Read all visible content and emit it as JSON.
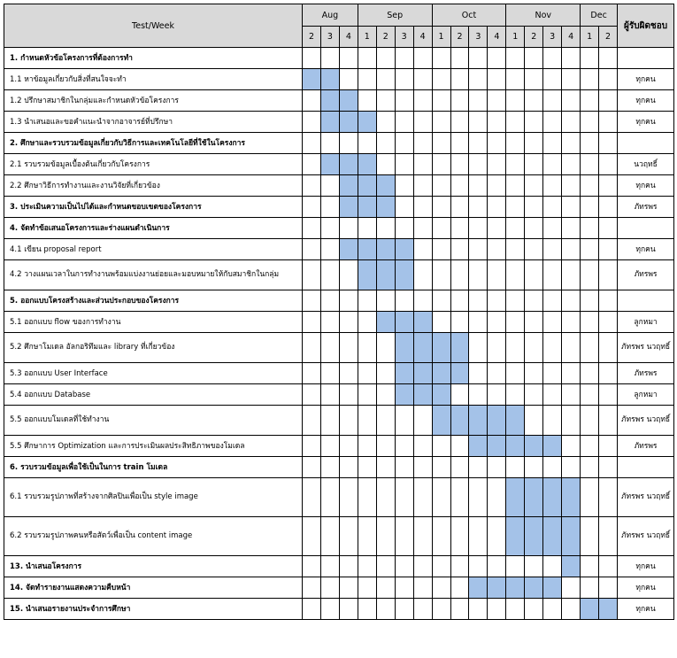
{
  "header": {
    "task_col": "Test/Week",
    "resp_col": "ผู้รับผิดชอบ",
    "months": [
      {
        "label": "Aug",
        "weeks": [
          "2",
          "3",
          "4"
        ]
      },
      {
        "label": "Sep",
        "weeks": [
          "1",
          "2",
          "3",
          "4"
        ]
      },
      {
        "label": "Oct",
        "weeks": [
          "1",
          "2",
          "3",
          "4"
        ]
      },
      {
        "label": "Nov",
        "weeks": [
          "1",
          "2",
          "3",
          "4"
        ]
      },
      {
        "label": "Dec",
        "weeks": [
          "1",
          "2"
        ]
      }
    ]
  },
  "rows": [
    {
      "task": "1. กำหนดหัวข้อโครงการที่ต้องการทำ",
      "head": true,
      "resp": "",
      "filled": []
    },
    {
      "task": "1.1 หาข้อมูลเกี่ยวกับสิ่งที่สนใจจะทำ",
      "resp": "ทุกคน",
      "filled": [
        0,
        1
      ]
    },
    {
      "task": "1.2 ปรึกษาสมาชิกในกลุ่มและกำหนดหัวข้อโครงการ",
      "resp": "ทุกคน",
      "filled": [
        1,
        2
      ]
    },
    {
      "task": "1.3 นำเสนอและขอคำแนะนำจากอาจารย์ที่ปรึกษา",
      "resp": "ทุกคน",
      "filled": [
        1,
        2,
        3
      ]
    },
    {
      "task": "2. ศึกษาและรวบรวมข้อมูลเกี่ยวกับวิธีการและเทคโนโลยีที่ใช้ในโครงการ",
      "head": true,
      "resp": "",
      "filled": []
    },
    {
      "task": "2.1 รวบรวมข้อมูลเบื้องต้นเกี่ยวกับโครงการ",
      "resp": "นวฤทธิ์",
      "filled": [
        1,
        2,
        3
      ]
    },
    {
      "task": "2.2 ศึกษาวิธีการทำงานและงานวิจัยที่เกี่ยวข้อง",
      "resp": "ทุกคน",
      "filled": [
        2,
        3,
        4
      ]
    },
    {
      "task": "3. ประเมินความเป็นไปได้และกำหนดขอบเขตของโครงการ",
      "head": true,
      "resp": "ภัทรพร",
      "filled": [
        2,
        3,
        4
      ]
    },
    {
      "task": "4. จัดทำข้อเสนอโครงการและร่างแผนดำเนินการ",
      "head": true,
      "resp": "",
      "filled": []
    },
    {
      "task": "4.1 เขียน proposal report",
      "resp": "ทุกคน",
      "filled": [
        2,
        3,
        4,
        5
      ]
    },
    {
      "task": "4.2 วางแผนเวลาในการทำงานพร้อมแบ่งงานย่อยและมอบหมายให้กับสมาชิกในกลุ่ม",
      "resp": "ภัทรพร",
      "filled": [
        3,
        4,
        5
      ],
      "tall": true
    },
    {
      "task": "5. ออกแบบโครงสร้างและส่วนประกอบของโครงการ",
      "head": true,
      "resp": "",
      "filled": []
    },
    {
      "task": "5.1 ออกแบบ flow ของการทำงาน",
      "resp": "ลูกหมา",
      "filled": [
        4,
        5,
        6
      ]
    },
    {
      "task": "5.2 ศึกษาโมเดล อัลกอริทึมและ library ที่เกี่ยวข้อง",
      "resp": "ภัทรพร นวฤทธิ์",
      "filled": [
        5,
        6,
        7,
        8
      ],
      "tall": true
    },
    {
      "task": "5.3 ออกแบบ User Interface",
      "resp": "ภัทรพร",
      "filled": [
        5,
        6,
        7,
        8
      ]
    },
    {
      "task": "5.4 ออกแบบ Database",
      "resp": "ลูกหมา",
      "filled": [
        5,
        6,
        7
      ]
    },
    {
      "task": "5.5 ออกแบบโมเดลที่ใช้ทำงาน",
      "resp": "ภัทรพร นวฤทธิ์",
      "filled": [
        7,
        8,
        9,
        10,
        11
      ],
      "tall": true
    },
    {
      "task": "5.5 ศึกษาการ Optimization และการประเมินผลประสิทธิภาพของโมเดล",
      "resp": "ภัทรพร",
      "filled": [
        9,
        10,
        11,
        12,
        13
      ]
    },
    {
      "task": "6. รวบรวมข้อมูลเพื่อใช้เป็นในการ train โมเดล",
      "head": true,
      "resp": "",
      "filled": []
    },
    {
      "task": "6.1 รวบรวมรูปภาพที่สร้างจากศิลปินเพื่อเป็น style image",
      "resp": "ภัทรพร นวฤทธิ์",
      "filled": [
        11,
        12,
        13,
        14
      ],
      "xtall": true
    },
    {
      "task": "6.2 รวบรวมรูปภาพคนหรือสัตว์เพื่อเป็น content image",
      "resp": "ภัทรพร นวฤทธิ์",
      "filled": [
        11,
        12,
        13,
        14
      ],
      "xtall": true
    },
    {
      "task": "13. นำเสนอโครงการ",
      "head": true,
      "resp": "ทุกคน",
      "filled": [
        14
      ]
    },
    {
      "task": "14. จัดทำรายงานแสดงความคืบหน้า",
      "head": true,
      "resp": "ทุกคน",
      "filled": [
        9,
        10,
        11,
        12,
        13
      ]
    },
    {
      "task": "15. นำเสนอรายงานประจำการศึกษา",
      "head": true,
      "resp": "ทุกคน",
      "filled": [
        15,
        16
      ]
    }
  ],
  "colors": {
    "filled": "#a4c2e8",
    "header_bg": "#d9d9d9"
  }
}
